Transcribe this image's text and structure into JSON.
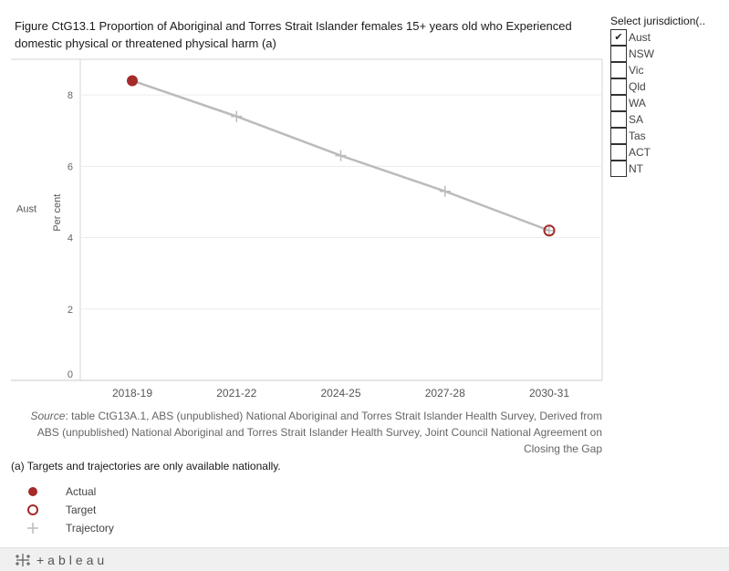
{
  "title": "Figure CtG13.1 Proportion of Aboriginal and Torres Strait Islander females 15+ years old who Experienced domestic physical or threatened physical harm (a)",
  "filter": {
    "title": "Select jurisdiction(..",
    "items": [
      {
        "label": "Aust",
        "checked": true,
        "check_glyph": "✔"
      },
      {
        "label": "NSW",
        "checked": false,
        "check_glyph": ""
      },
      {
        "label": "Vic",
        "checked": false,
        "check_glyph": ""
      },
      {
        "label": "Qld",
        "checked": false,
        "check_glyph": ""
      },
      {
        "label": "WA",
        "checked": false,
        "check_glyph": ""
      },
      {
        "label": "SA",
        "checked": false,
        "check_glyph": ""
      },
      {
        "label": "Tas",
        "checked": false,
        "check_glyph": ""
      },
      {
        "label": "ACT",
        "checked": false,
        "check_glyph": ""
      },
      {
        "label": "NT",
        "checked": false,
        "check_glyph": ""
      }
    ]
  },
  "chart_data": {
    "type": "line",
    "row_label": "Aust",
    "ylabel": "Per cent",
    "xlabel": "",
    "categories": [
      "2018-19",
      "2021-22",
      "2024-25",
      "2027-28",
      "2030-31"
    ],
    "ylim": [
      0,
      9
    ],
    "yticks": [
      0,
      2,
      4,
      6,
      8
    ],
    "grid": true,
    "series": [
      {
        "name": "Trajectory",
        "values": [
          8.4,
          7.4,
          6.3,
          5.3,
          4.2
        ],
        "marker": "plus",
        "color": "#bbbbbb"
      },
      {
        "name": "Actual",
        "values": [
          8.4,
          null,
          null,
          null,
          null
        ],
        "marker": "filled-circle",
        "color": "#a52a2a"
      },
      {
        "name": "Target",
        "values": [
          null,
          null,
          null,
          null,
          4.2
        ],
        "marker": "open-circle",
        "color": "#a52a2a"
      }
    ]
  },
  "source": {
    "label": "Source",
    "text": ": table CtG13A.1, ABS (unpublished) National Aboriginal and Torres Strait Islander Health Survey, Derived from ABS (unpublished) National Aboriginal and Torres Strait Islander Health Survey, Joint Council National Agreement on Closing the Gap"
  },
  "footnote": "(a) Targets and trajectories are only available nationally.",
  "legend": [
    {
      "label": "Actual",
      "marker": "filled-circle",
      "color": "#a52a2a"
    },
    {
      "label": "Target",
      "marker": "open-circle",
      "color": "#a52a2a"
    },
    {
      "label": "Trajectory",
      "marker": "plus",
      "color": "#bbbbbb"
    }
  ],
  "footer": {
    "brand": "+ableau",
    "icon": "tableau-logo-icon"
  }
}
